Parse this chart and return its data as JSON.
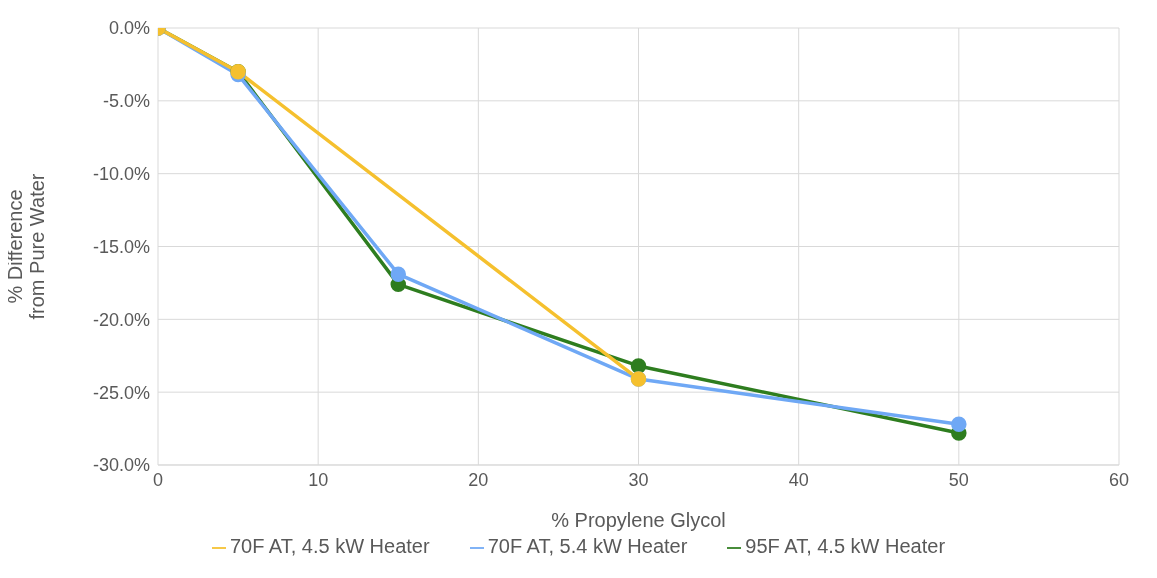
{
  "chart_data": {
    "type": "line",
    "xlabel": "% Propylene Glycol",
    "ylabel": "% Difference\nfrom Pure Water",
    "series": [
      {
        "name": "95F AT, 4.5 kW Heater",
        "color": "#2e7d1f",
        "x": [
          0,
          5,
          15,
          30,
          50
        ],
        "values": [
          0,
          -3.0,
          -17.6,
          -23.2,
          -27.8
        ]
      },
      {
        "name": "70F AT, 5.4 kW Heater",
        "color": "#6fa8f5",
        "x": [
          0,
          5,
          15,
          30,
          50
        ],
        "values": [
          0,
          -3.2,
          -16.9,
          -24.1,
          -27.2
        ]
      },
      {
        "name": "70F AT, 4.5 kW Heater",
        "color": "#f5c02e",
        "x": [
          0,
          5,
          30
        ],
        "values": [
          0,
          -3.0,
          -24.1
        ]
      }
    ],
    "xlim": [
      0,
      60
    ],
    "xticks": [
      0,
      10,
      20,
      30,
      40,
      50,
      60
    ],
    "ylim": [
      -30,
      0
    ],
    "yticks": [
      {
        "value": 0,
        "label": "0.0%"
      },
      {
        "value": -5,
        "label": "-5.0%"
      },
      {
        "value": -10,
        "label": "-10.0%"
      },
      {
        "value": -15,
        "label": "-15.0%"
      },
      {
        "value": -20,
        "label": "-20.0%"
      },
      {
        "value": -25,
        "label": "-25.0%"
      },
      {
        "value": -30,
        "label": "-30.0%"
      }
    ],
    "grid": true,
    "legend": "bottom",
    "marker": "circle",
    "line_style": "solid"
  }
}
